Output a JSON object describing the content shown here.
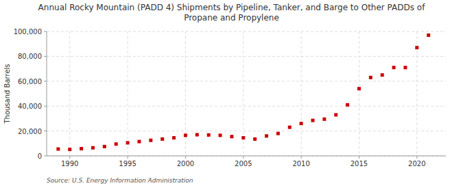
{
  "chart_data": {
    "type": "scatter",
    "title": "Annual Rocky Mountain (PADD 4) Shipments by Pipeline, Tanker, and Barge to Other PADDs of\nPropane and Propylene",
    "y_label": "Thousand Barrels",
    "annotations": [
      "Source: U.S. Energy Information Administration"
    ],
    "x": [
      1989,
      1990,
      1991,
      1992,
      1993,
      1994,
      1995,
      1996,
      1997,
      1998,
      1999,
      2000,
      2001,
      2002,
      2003,
      2004,
      2005,
      2006,
      2007,
      2008,
      2009,
      2010,
      2011,
      2012,
      2013,
      2014,
      2015,
      2016,
      2017,
      2018,
      2019,
      2020,
      2021
    ],
    "values": [
      5500,
      5200,
      5800,
      6500,
      7500,
      9500,
      10500,
      11500,
      12500,
      13500,
      14500,
      16500,
      17000,
      16800,
      16500,
      15500,
      14500,
      13500,
      16000,
      18000,
      23000,
      26000,
      28500,
      29500,
      33000,
      41000,
      54000,
      63000,
      65000,
      71000,
      71000,
      87000,
      97000
    ],
    "color": "#cc0000",
    "marker": "square",
    "xlim": [
      1988.0,
      2022.5
    ],
    "ylim": [
      0,
      100000
    ],
    "xticks": [
      1990,
      1995,
      2000,
      2005,
      2010,
      2015,
      2020
    ],
    "yticks": [
      0,
      {
        "value": 20000,
        "label": "20,000"
      },
      {
        "value": 40000,
        "label": "40,000"
      },
      {
        "value": 60000,
        "label": "60,000"
      },
      {
        "value": 80000,
        "label": "80,000"
      },
      {
        "value": 100000,
        "label": "100,000"
      }
    ],
    "grid": true
  }
}
